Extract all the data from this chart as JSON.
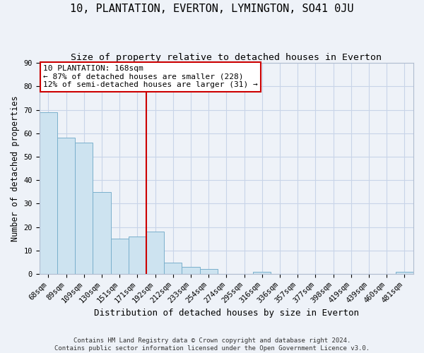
{
  "title": "10, PLANTATION, EVERTON, LYMINGTON, SO41 0JU",
  "subtitle": "Size of property relative to detached houses in Everton",
  "xlabel": "Distribution of detached houses by size in Everton",
  "ylabel": "Number of detached properties",
  "bar_labels": [
    "68sqm",
    "89sqm",
    "109sqm",
    "130sqm",
    "151sqm",
    "171sqm",
    "192sqm",
    "212sqm",
    "233sqm",
    "254sqm",
    "274sqm",
    "295sqm",
    "316sqm",
    "336sqm",
    "357sqm",
    "377sqm",
    "398sqm",
    "419sqm",
    "439sqm",
    "460sqm",
    "481sqm"
  ],
  "bar_values": [
    69,
    58,
    56,
    35,
    15,
    16,
    18,
    5,
    3,
    2,
    0,
    0,
    1,
    0,
    0,
    0,
    0,
    0,
    0,
    0,
    1
  ],
  "bar_color": "#cde3f0",
  "bar_edge_color": "#7ab0cc",
  "vline_x_idx": 5,
  "vline_color": "#cc0000",
  "annotation_title": "10 PLANTATION: 168sqm",
  "annotation_line1": "← 87% of detached houses are smaller (228)",
  "annotation_line2": "12% of semi-detached houses are larger (31) →",
  "annotation_box_color": "#ffffff",
  "annotation_box_edge": "#cc0000",
  "ylim": [
    0,
    90
  ],
  "yticks": [
    0,
    10,
    20,
    30,
    40,
    50,
    60,
    70,
    80,
    90
  ],
  "footer_line1": "Contains HM Land Registry data © Crown copyright and database right 2024.",
  "footer_line2": "Contains public sector information licensed under the Open Government Licence v3.0.",
  "bg_color": "#eef2f8",
  "grid_color": "#c8d4e8",
  "title_fontsize": 11,
  "subtitle_fontsize": 9.5,
  "xlabel_fontsize": 9,
  "ylabel_fontsize": 8.5,
  "tick_fontsize": 7.5,
  "footer_fontsize": 6.5
}
